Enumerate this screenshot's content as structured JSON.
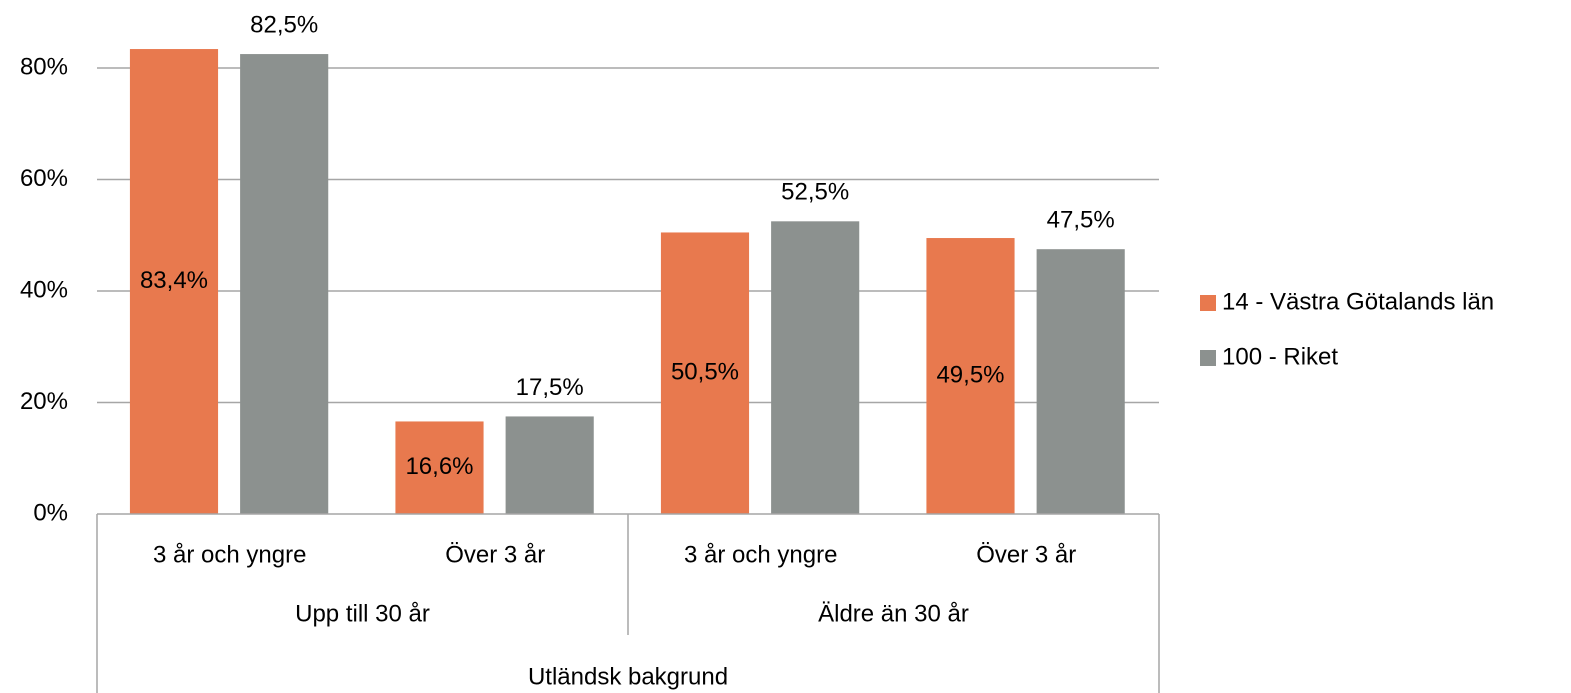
{
  "chart_data": {
    "type": "bar",
    "category_groups": [
      {
        "label": "Upp till 30 år",
        "categories": [
          "3 år och yngre",
          "Över 3 år"
        ]
      },
      {
        "label": "Äldre än 30 år",
        "categories": [
          "3 år och yngre",
          "Över 3 år"
        ]
      }
    ],
    "category_supergroup": "Utländsk bakgrund",
    "series": [
      {
        "name": "14 - Västra Götalands län",
        "color": "#e8794e",
        "values": [
          83.4,
          16.6,
          50.5,
          49.5
        ],
        "value_labels": [
          "83,4%",
          "16,6%",
          "50,5%",
          "49,5%"
        ]
      },
      {
        "name": "100 - Riket",
        "color": "#8c918f",
        "values": [
          82.5,
          17.5,
          52.5,
          47.5
        ],
        "value_labels": [
          "82,5%",
          "17,5%",
          "52,5%",
          "47,5%"
        ]
      }
    ],
    "ylim": [
      0,
      80
    ],
    "yticks": [
      {
        "value": 0,
        "label": "0%"
      },
      {
        "value": 20,
        "label": "20%"
      },
      {
        "value": 40,
        "label": "40%"
      },
      {
        "value": 60,
        "label": "60%"
      },
      {
        "value": 80,
        "label": "80%"
      }
    ],
    "grid": true,
    "legend": "right"
  }
}
